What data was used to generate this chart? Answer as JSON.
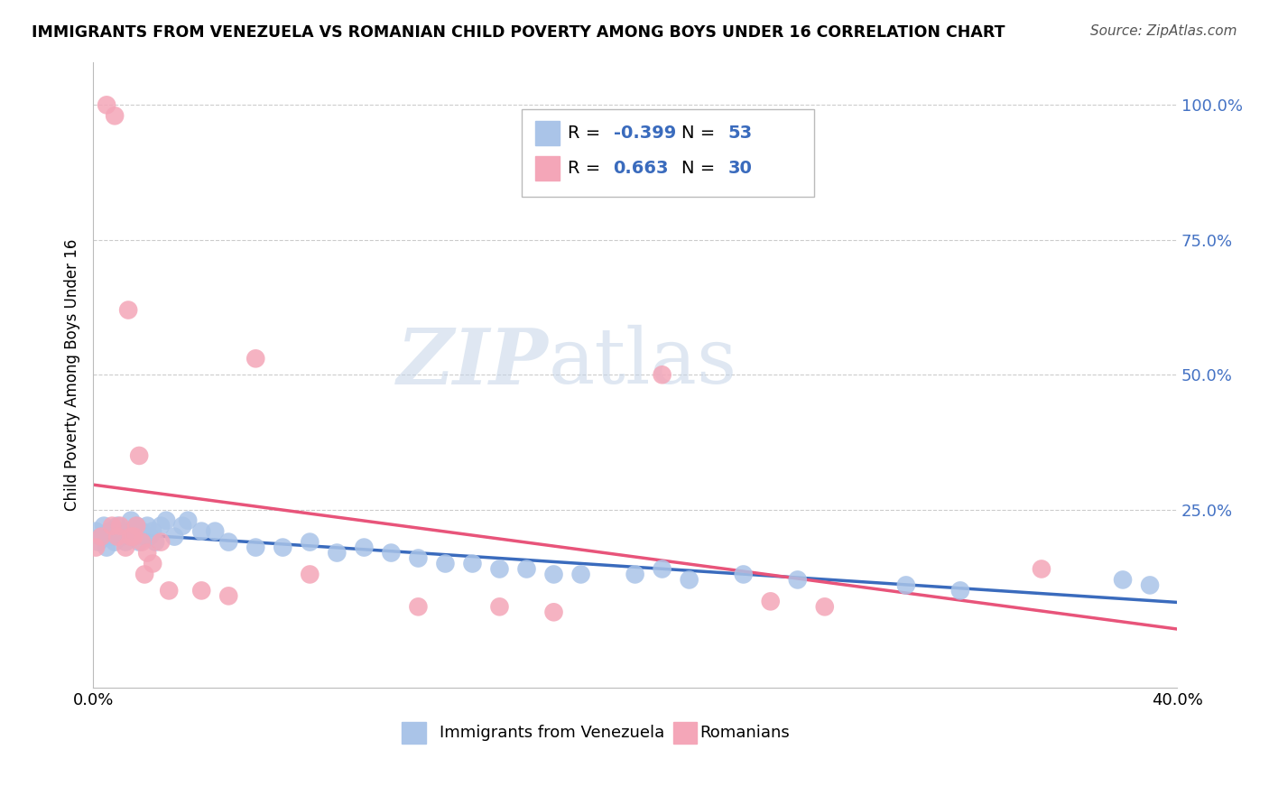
{
  "title": "IMMIGRANTS FROM VENEZUELA VS ROMANIAN CHILD POVERTY AMONG BOYS UNDER 16 CORRELATION CHART",
  "source": "Source: ZipAtlas.com",
  "ylabel": "Child Poverty Among Boys Under 16",
  "ytick_vals": [
    0.0,
    0.25,
    0.5,
    0.75,
    1.0
  ],
  "ytick_labels": [
    "",
    "25.0%",
    "50.0%",
    "75.0%",
    "100.0%"
  ],
  "xtick_vals": [
    0.0,
    0.4
  ],
  "xtick_labels": [
    "0.0%",
    "40.0%"
  ],
  "xlim": [
    0.0,
    0.4
  ],
  "ylim": [
    -0.08,
    1.08
  ],
  "background_color": "#ffffff",
  "grid_color": "#cccccc",
  "color_venezuela": "#aac4e8",
  "color_romanian": "#f4a6b8",
  "line_color_venezuela": "#3a6bbd",
  "line_color_romanian": "#e8547a",
  "watermark_zip": "ZIP",
  "watermark_atlas": "atlas",
  "legend_r1_val": "-0.399",
  "legend_n1_val": "53",
  "legend_r2_val": "0.663",
  "legend_n2_val": "30",
  "venezuela_points_x": [
    0.001,
    0.002,
    0.003,
    0.004,
    0.005,
    0.006,
    0.007,
    0.008,
    0.009,
    0.01,
    0.011,
    0.012,
    0.013,
    0.014,
    0.015,
    0.016,
    0.017,
    0.018,
    0.019,
    0.02,
    0.021,
    0.022,
    0.023,
    0.025,
    0.027,
    0.03,
    0.033,
    0.035,
    0.04,
    0.045,
    0.05,
    0.06,
    0.07,
    0.08,
    0.09,
    0.1,
    0.11,
    0.12,
    0.13,
    0.14,
    0.15,
    0.16,
    0.17,
    0.18,
    0.2,
    0.21,
    0.22,
    0.24,
    0.26,
    0.3,
    0.32,
    0.38,
    0.39
  ],
  "venezuela_points_y": [
    0.21,
    0.19,
    0.2,
    0.22,
    0.18,
    0.21,
    0.2,
    0.19,
    0.22,
    0.21,
    0.2,
    0.19,
    0.21,
    0.23,
    0.2,
    0.22,
    0.19,
    0.21,
    0.2,
    0.22,
    0.2,
    0.21,
    0.19,
    0.22,
    0.23,
    0.2,
    0.22,
    0.23,
    0.21,
    0.21,
    0.19,
    0.18,
    0.18,
    0.19,
    0.17,
    0.18,
    0.17,
    0.16,
    0.15,
    0.15,
    0.14,
    0.14,
    0.13,
    0.13,
    0.13,
    0.14,
    0.12,
    0.13,
    0.12,
    0.11,
    0.1,
    0.12,
    0.11
  ],
  "romanian_points_x": [
    0.001,
    0.003,
    0.005,
    0.007,
    0.008,
    0.009,
    0.01,
    0.012,
    0.013,
    0.014,
    0.015,
    0.016,
    0.017,
    0.018,
    0.019,
    0.02,
    0.022,
    0.025,
    0.028,
    0.04,
    0.05,
    0.06,
    0.08,
    0.12,
    0.15,
    0.17,
    0.21,
    0.25,
    0.27,
    0.35
  ],
  "romanian_points_y": [
    0.18,
    0.2,
    1.0,
    0.22,
    0.98,
    0.2,
    0.22,
    0.18,
    0.62,
    0.2,
    0.2,
    0.22,
    0.35,
    0.19,
    0.13,
    0.17,
    0.15,
    0.19,
    0.1,
    0.1,
    0.09,
    0.53,
    0.13,
    0.07,
    0.07,
    0.06,
    0.5,
    0.08,
    0.07,
    0.14
  ]
}
